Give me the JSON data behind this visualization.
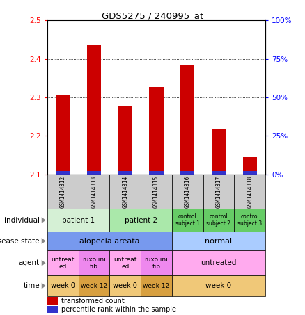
{
  "title": "GDS5275 / 240995_at",
  "samples": [
    "GSM1414312",
    "GSM1414313",
    "GSM1414314",
    "GSM1414315",
    "GSM1414316",
    "GSM1414317",
    "GSM1414318"
  ],
  "transformed_count": [
    2.305,
    2.435,
    2.278,
    2.328,
    2.385,
    2.218,
    2.145
  ],
  "ylim": [
    2.1,
    2.5
  ],
  "yticks_left": [
    2.1,
    2.2,
    2.3,
    2.4,
    2.5
  ],
  "yticks_right": [
    0,
    25,
    50,
    75,
    100
  ],
  "bar_color": "#cc0000",
  "percentile_color": "#3333cc",
  "sample_header_bg": "#cccccc",
  "annotation_rows": [
    {
      "label": "individual",
      "cells": [
        {
          "text": "patient 1",
          "span": 2,
          "color": "#d5f0d5",
          "fontsize": 7.5
        },
        {
          "text": "patient 2",
          "span": 2,
          "color": "#aae8aa",
          "fontsize": 7.5
        },
        {
          "text": "control\nsubject 1",
          "span": 1,
          "color": "#66cc66",
          "fontsize": 5.5
        },
        {
          "text": "control\nsubject 2",
          "span": 1,
          "color": "#66cc66",
          "fontsize": 5.5
        },
        {
          "text": "control\nsubject 3",
          "span": 1,
          "color": "#66cc66",
          "fontsize": 5.5
        }
      ]
    },
    {
      "label": "disease state",
      "cells": [
        {
          "text": "alopecia areata",
          "span": 4,
          "color": "#7799ee",
          "fontsize": 8
        },
        {
          "text": "normal",
          "span": 3,
          "color": "#aaccff",
          "fontsize": 8
        }
      ]
    },
    {
      "label": "agent",
      "cells": [
        {
          "text": "untreat\ned",
          "span": 1,
          "color": "#ffaaee",
          "fontsize": 6.5
        },
        {
          "text": "ruxolini\ntib",
          "span": 1,
          "color": "#ee88ee",
          "fontsize": 6.5
        },
        {
          "text": "untreat\ned",
          "span": 1,
          "color": "#ffaaee",
          "fontsize": 6.5
        },
        {
          "text": "ruxolini\ntib",
          "span": 1,
          "color": "#ee88ee",
          "fontsize": 6.5
        },
        {
          "text": "untreated",
          "span": 3,
          "color": "#ffaaee",
          "fontsize": 7.5
        }
      ]
    },
    {
      "label": "time",
      "cells": [
        {
          "text": "week 0",
          "span": 1,
          "color": "#f0c878",
          "fontsize": 7
        },
        {
          "text": "week 12",
          "span": 1,
          "color": "#d8a040",
          "fontsize": 6.5
        },
        {
          "text": "week 0",
          "span": 1,
          "color": "#f0c878",
          "fontsize": 7
        },
        {
          "text": "week 12",
          "span": 1,
          "color": "#d8a040",
          "fontsize": 6.5
        },
        {
          "text": "week 0",
          "span": 3,
          "color": "#f0c878",
          "fontsize": 7.5
        }
      ]
    }
  ]
}
